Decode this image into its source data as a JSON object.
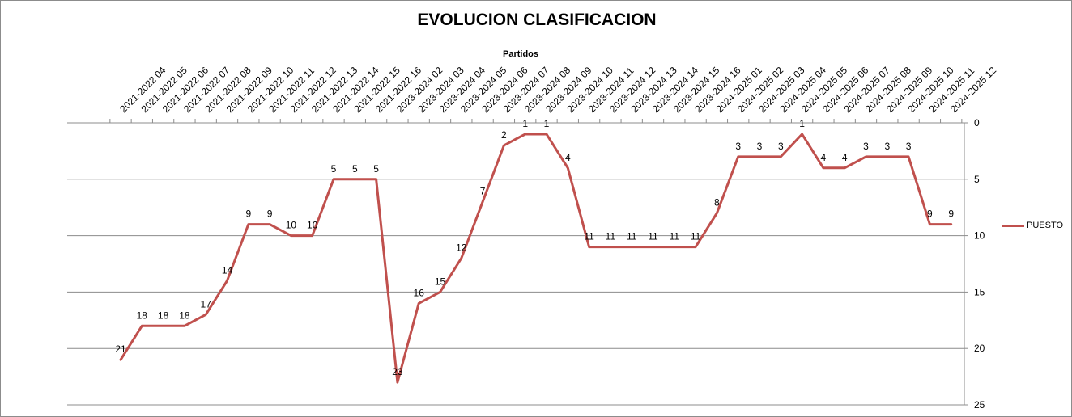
{
  "chart_data": {
    "type": "line",
    "title": "EVOLUCION CLASIFICACION",
    "xlabel": "Partidos",
    "ylabel": "",
    "ylim": [
      0,
      25
    ],
    "y_reversed": true,
    "y_ticks": [
      0,
      5,
      10,
      15,
      20,
      25
    ],
    "grid": "horizontal",
    "legend_position": "right",
    "colors": {
      "series": "#c0504d",
      "grid": "#8c8c8c"
    },
    "categories": [
      "2021-2022 04",
      "2021-2022 05",
      "2021-2022 06",
      "2021-2022 07",
      "2021-2022 08",
      "2021-2022 09",
      "2021-2022 10",
      "2021-2022 11",
      "2021-2022 12",
      "2021-2022 13",
      "2021-2022 14",
      "2021-2022 15",
      "2021-2022 16",
      "2023-2024 02",
      "2023-2024 03",
      "2023-2024 04",
      "2023-2024 05",
      "2023-2024 06",
      "2023-2024 07",
      "2023-2024 08",
      "2023-2024 09",
      "2023-2024 10",
      "2023-2024 11",
      "2023-2024 12",
      "2023-2024 13",
      "2023-2024 14",
      "2023-2024 15",
      "2023-2024 16",
      "2024-2025 01",
      "2024-2025 02",
      "2024-2025 03",
      "2024-2025 04",
      "2024-2025 05",
      "2024-2025 06",
      "2024-2025 07",
      "2024-2025 08",
      "2024-2025 09",
      "2024-2025 10",
      "2024-2025 11",
      "2024-2025 12"
    ],
    "series": [
      {
        "name": "PUESTO",
        "values": [
          21,
          18,
          18,
          18,
          17,
          14,
          9,
          9,
          10,
          10,
          5,
          5,
          5,
          23,
          16,
          15,
          12,
          7,
          2,
          1,
          1,
          4,
          11,
          11,
          11,
          11,
          11,
          11,
          8,
          3,
          3,
          3,
          1,
          4,
          4,
          3,
          3,
          3,
          9,
          9
        ]
      }
    ]
  }
}
